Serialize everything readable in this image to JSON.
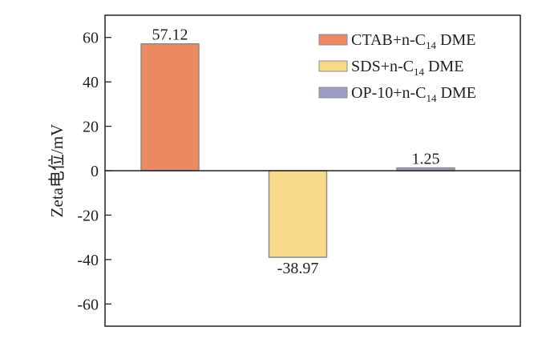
{
  "chart_data": {
    "type": "bar",
    "title": "",
    "xlabel": "",
    "ylabel": "Zeta电位/mV",
    "ylim": [
      -70,
      70
    ],
    "yticks": [
      60,
      40,
      20,
      0,
      -20,
      -40,
      -60
    ],
    "grid": false,
    "legend_position": "top-right",
    "series": [
      {
        "name": "CTAB+n-C14 DME",
        "name_main": "CTAB+n-C",
        "name_sub": "14",
        "name_tail": " DME",
        "value": 57.12,
        "label": "57.12",
        "color": "#EB8963"
      },
      {
        "name": "SDS+n-C14 DME",
        "name_main": "SDS+n-C",
        "name_sub": "14",
        "name_tail": " DME",
        "value": -38.97,
        "label": "-38.97",
        "color": "#F8D98C"
      },
      {
        "name": "OP-10+n-C14 DME",
        "name_main": "OP-10+n-C",
        "name_sub": "14",
        "name_tail": " DME",
        "value": 1.25,
        "label": "1.25",
        "color": "#9E9DC6"
      }
    ]
  }
}
